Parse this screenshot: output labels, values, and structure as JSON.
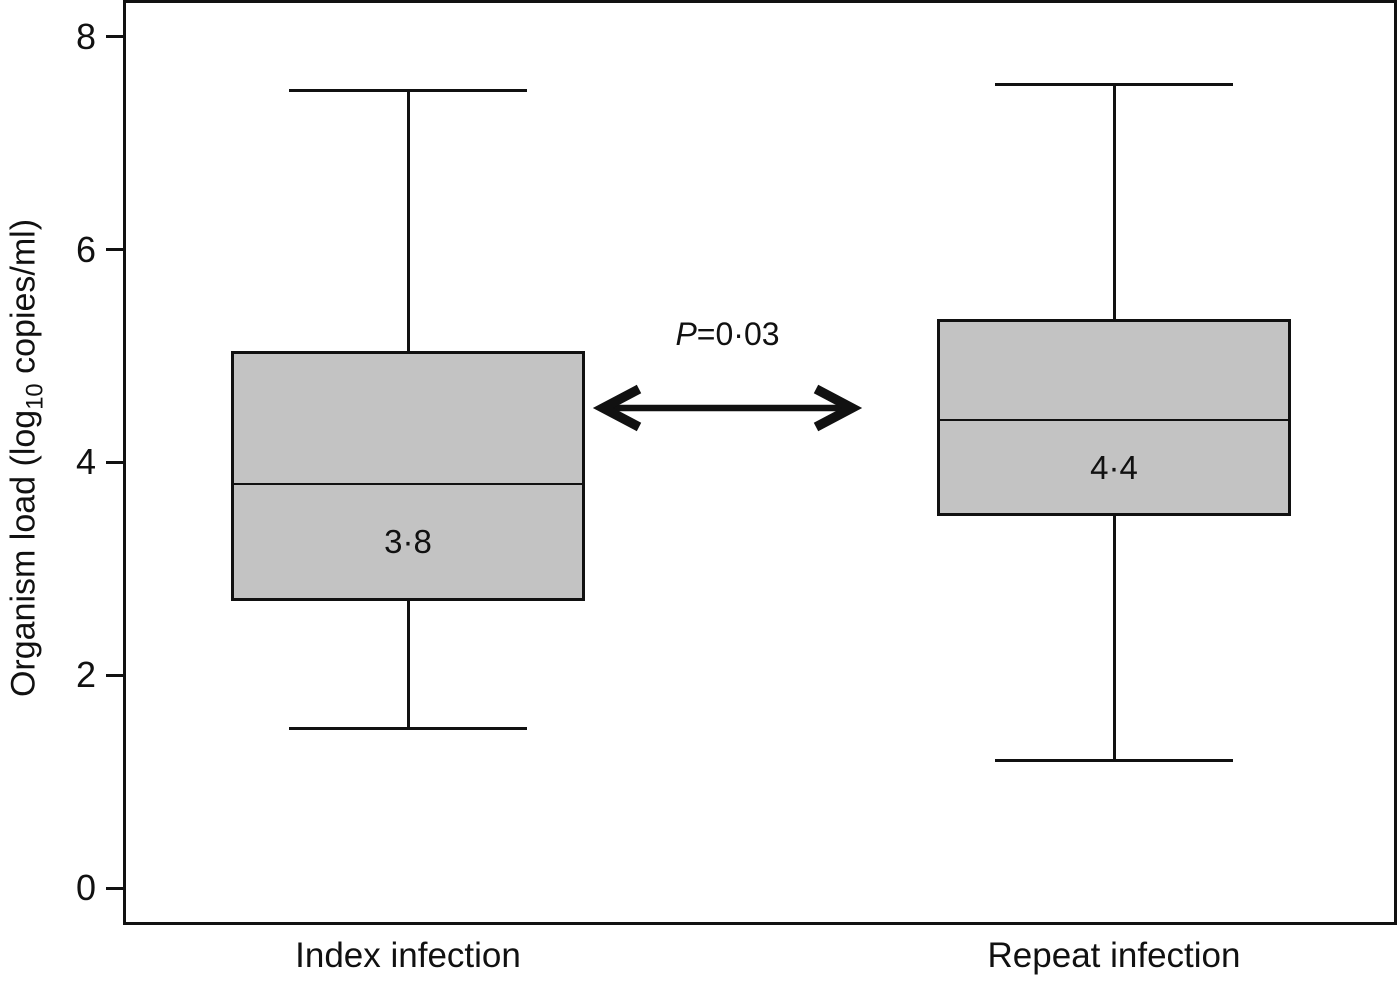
{
  "chart_data": {
    "type": "box",
    "title": "",
    "xlabel": "",
    "ylabel_prefix": "Organism load (log",
    "ylabel_sub": "10",
    "ylabel_suffix": " copies/ml)",
    "ylim": [
      -0.35,
      8.33
    ],
    "yticks": [
      0,
      2,
      4,
      6,
      8
    ],
    "grid": false,
    "legend_position": "none",
    "categories": [
      "Index infection",
      "Repeat infection"
    ],
    "series": [
      {
        "category": "Index infection",
        "whisker_low": 1.5,
        "q1": 2.7,
        "median": 3.8,
        "q3": 5.05,
        "whisker_high": 7.5,
        "median_label": "3·8"
      },
      {
        "category": "Repeat infection",
        "whisker_low": 1.2,
        "q1": 3.5,
        "median": 4.4,
        "q3": 5.35,
        "whisker_high": 7.55,
        "median_label": "4·4"
      }
    ],
    "annotation": {
      "p_symbol": "P",
      "p_rest": "=0·03"
    },
    "colors": {
      "box_fill": "#c3c3c3",
      "line_color": "#111111",
      "background": "#ffffff"
    }
  }
}
